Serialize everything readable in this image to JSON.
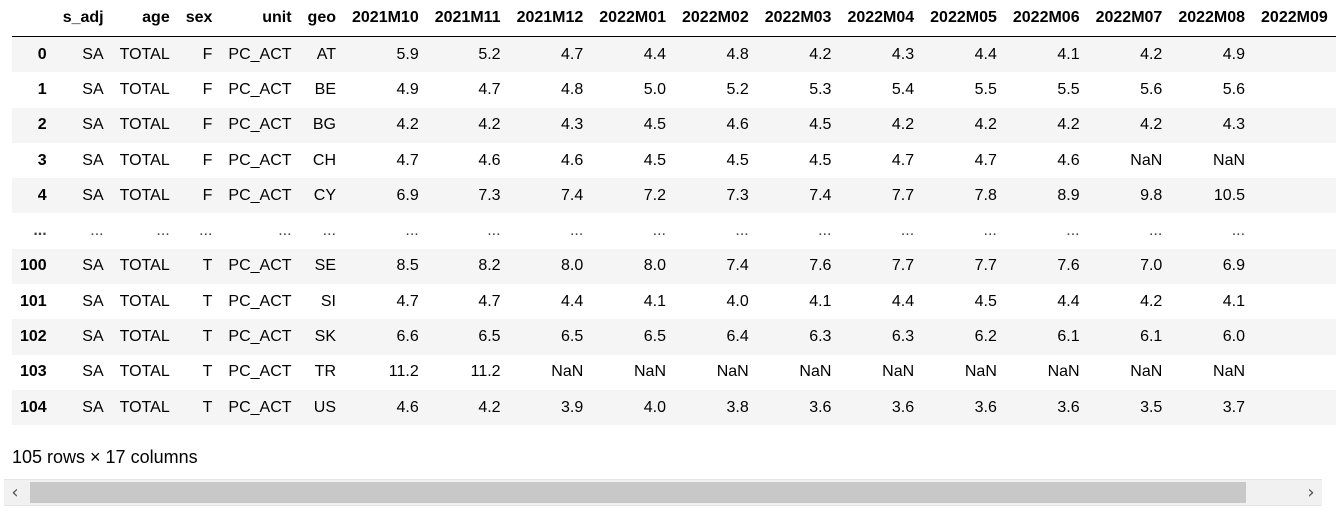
{
  "table": {
    "index_header": "",
    "columns": [
      "s_adj",
      "age",
      "sex",
      "unit",
      "geo",
      "2021M10",
      "2021M11",
      "2021M12",
      "2022M01",
      "2022M02",
      "2022M03",
      "2022M04",
      "2022M05",
      "2022M06",
      "2022M07",
      "2022M08",
      "2022M09"
    ],
    "rows": [
      {
        "index": "0",
        "cells": [
          "SA",
          "TOTAL",
          "F",
          "PC_ACT",
          "AT",
          "5.9",
          "5.2",
          "4.7",
          "4.4",
          "4.8",
          "4.2",
          "4.3",
          "4.4",
          "4.1",
          "4.2",
          "4.9",
          ""
        ]
      },
      {
        "index": "1",
        "cells": [
          "SA",
          "TOTAL",
          "F",
          "PC_ACT",
          "BE",
          "4.9",
          "4.7",
          "4.8",
          "5.0",
          "5.2",
          "5.3",
          "5.4",
          "5.5",
          "5.5",
          "5.6",
          "5.6",
          ""
        ]
      },
      {
        "index": "2",
        "cells": [
          "SA",
          "TOTAL",
          "F",
          "PC_ACT",
          "BG",
          "4.2",
          "4.2",
          "4.3",
          "4.5",
          "4.6",
          "4.5",
          "4.2",
          "4.2",
          "4.2",
          "4.2",
          "4.3",
          ""
        ]
      },
      {
        "index": "3",
        "cells": [
          "SA",
          "TOTAL",
          "F",
          "PC_ACT",
          "CH",
          "4.7",
          "4.6",
          "4.6",
          "4.5",
          "4.5",
          "4.5",
          "4.7",
          "4.7",
          "4.6",
          "NaN",
          "NaN",
          ""
        ]
      },
      {
        "index": "4",
        "cells": [
          "SA",
          "TOTAL",
          "F",
          "PC_ACT",
          "CY",
          "6.9",
          "7.3",
          "7.4",
          "7.2",
          "7.3",
          "7.4",
          "7.7",
          "7.8",
          "8.9",
          "9.8",
          "10.5",
          ""
        ]
      },
      {
        "index": "...",
        "ellipsis": true,
        "cells": [
          "...",
          "...",
          "...",
          "...",
          "...",
          "...",
          "...",
          "...",
          "...",
          "...",
          "...",
          "...",
          "...",
          "...",
          "...",
          "...",
          ""
        ]
      },
      {
        "index": "100",
        "cells": [
          "SA",
          "TOTAL",
          "T",
          "PC_ACT",
          "SE",
          "8.5",
          "8.2",
          "8.0",
          "8.0",
          "7.4",
          "7.6",
          "7.7",
          "7.7",
          "7.6",
          "7.0",
          "6.9",
          ""
        ]
      },
      {
        "index": "101",
        "cells": [
          "SA",
          "TOTAL",
          "T",
          "PC_ACT",
          "SI",
          "4.7",
          "4.7",
          "4.4",
          "4.1",
          "4.0",
          "4.1",
          "4.4",
          "4.5",
          "4.4",
          "4.2",
          "4.1",
          ""
        ]
      },
      {
        "index": "102",
        "cells": [
          "SA",
          "TOTAL",
          "T",
          "PC_ACT",
          "SK",
          "6.6",
          "6.5",
          "6.5",
          "6.5",
          "6.4",
          "6.3",
          "6.3",
          "6.2",
          "6.1",
          "6.1",
          "6.0",
          ""
        ]
      },
      {
        "index": "103",
        "cells": [
          "SA",
          "TOTAL",
          "T",
          "PC_ACT",
          "TR",
          "11.2",
          "11.2",
          "NaN",
          "NaN",
          "NaN",
          "NaN",
          "NaN",
          "NaN",
          "NaN",
          "NaN",
          "NaN",
          ""
        ]
      },
      {
        "index": "104",
        "cells": [
          "SA",
          "TOTAL",
          "T",
          "PC_ACT",
          "US",
          "4.6",
          "4.2",
          "3.9",
          "4.0",
          "3.8",
          "3.6",
          "3.6",
          "3.6",
          "3.6",
          "3.5",
          "3.7",
          ""
        ]
      }
    ]
  },
  "caption": "105 rows × 17 columns",
  "scrollbar": {
    "left_icon": "‹",
    "right_icon": "›",
    "left_icon_name": "chevron-left-icon",
    "right_icon_name": "chevron-right-icon"
  }
}
